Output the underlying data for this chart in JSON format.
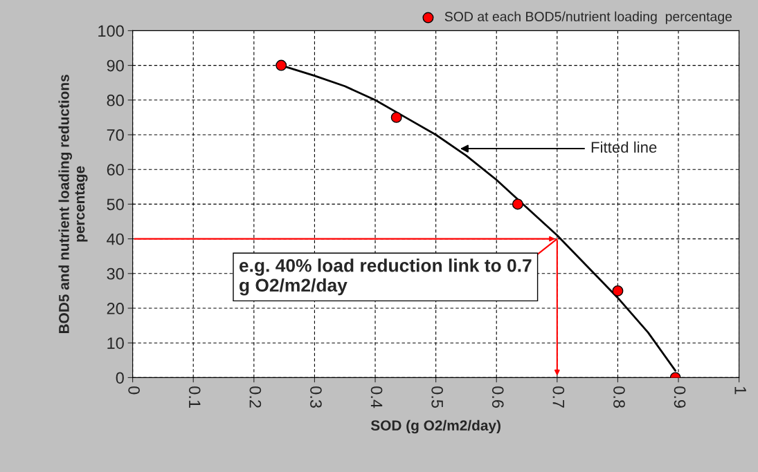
{
  "chart_data": {
    "type": "scatter",
    "xlabel": "SOD (g O2/m2/day)",
    "ylabel": "BOD5 and nutrient loading reductions\npercentage",
    "series": [
      {
        "name": "SOD at each BOD5/nutrient loading  percentage",
        "type": "scatter",
        "color": "#ff0000",
        "marker": "circle",
        "x": [
          0.245,
          0.435,
          0.635,
          0.8,
          0.895
        ],
        "values": [
          90,
          75,
          50,
          25,
          0
        ]
      },
      {
        "type": "line",
        "color": "#000000",
        "x": [
          0.245,
          0.3,
          0.35,
          0.4,
          0.45,
          0.5,
          0.55,
          0.6,
          0.65,
          0.7,
          0.75,
          0.8,
          0.85,
          0.895
        ],
        "values": [
          90,
          87,
          84,
          80,
          75,
          70,
          64,
          57,
          49,
          41,
          32,
          23,
          13,
          2
        ]
      }
    ],
    "annotations": [
      {
        "text": "e.g. 40% load reduction link to 0.7\ng O2/m2/day",
        "x": 0.7,
        "y": 40
      },
      {
        "text": "Fitted line",
        "x": 0.54,
        "y": 66
      }
    ],
    "xlim": [
      0,
      1
    ],
    "ylim": [
      0,
      100
    ],
    "xticks": [
      0,
      0.1,
      0.2,
      0.3,
      0.4,
      0.5,
      0.6,
      0.7,
      0.8,
      0.9,
      1
    ],
    "yticks": [
      0,
      10,
      20,
      30,
      40,
      50,
      60,
      70,
      80,
      90,
      100
    ],
    "grid": true,
    "legend": "top right"
  }
}
